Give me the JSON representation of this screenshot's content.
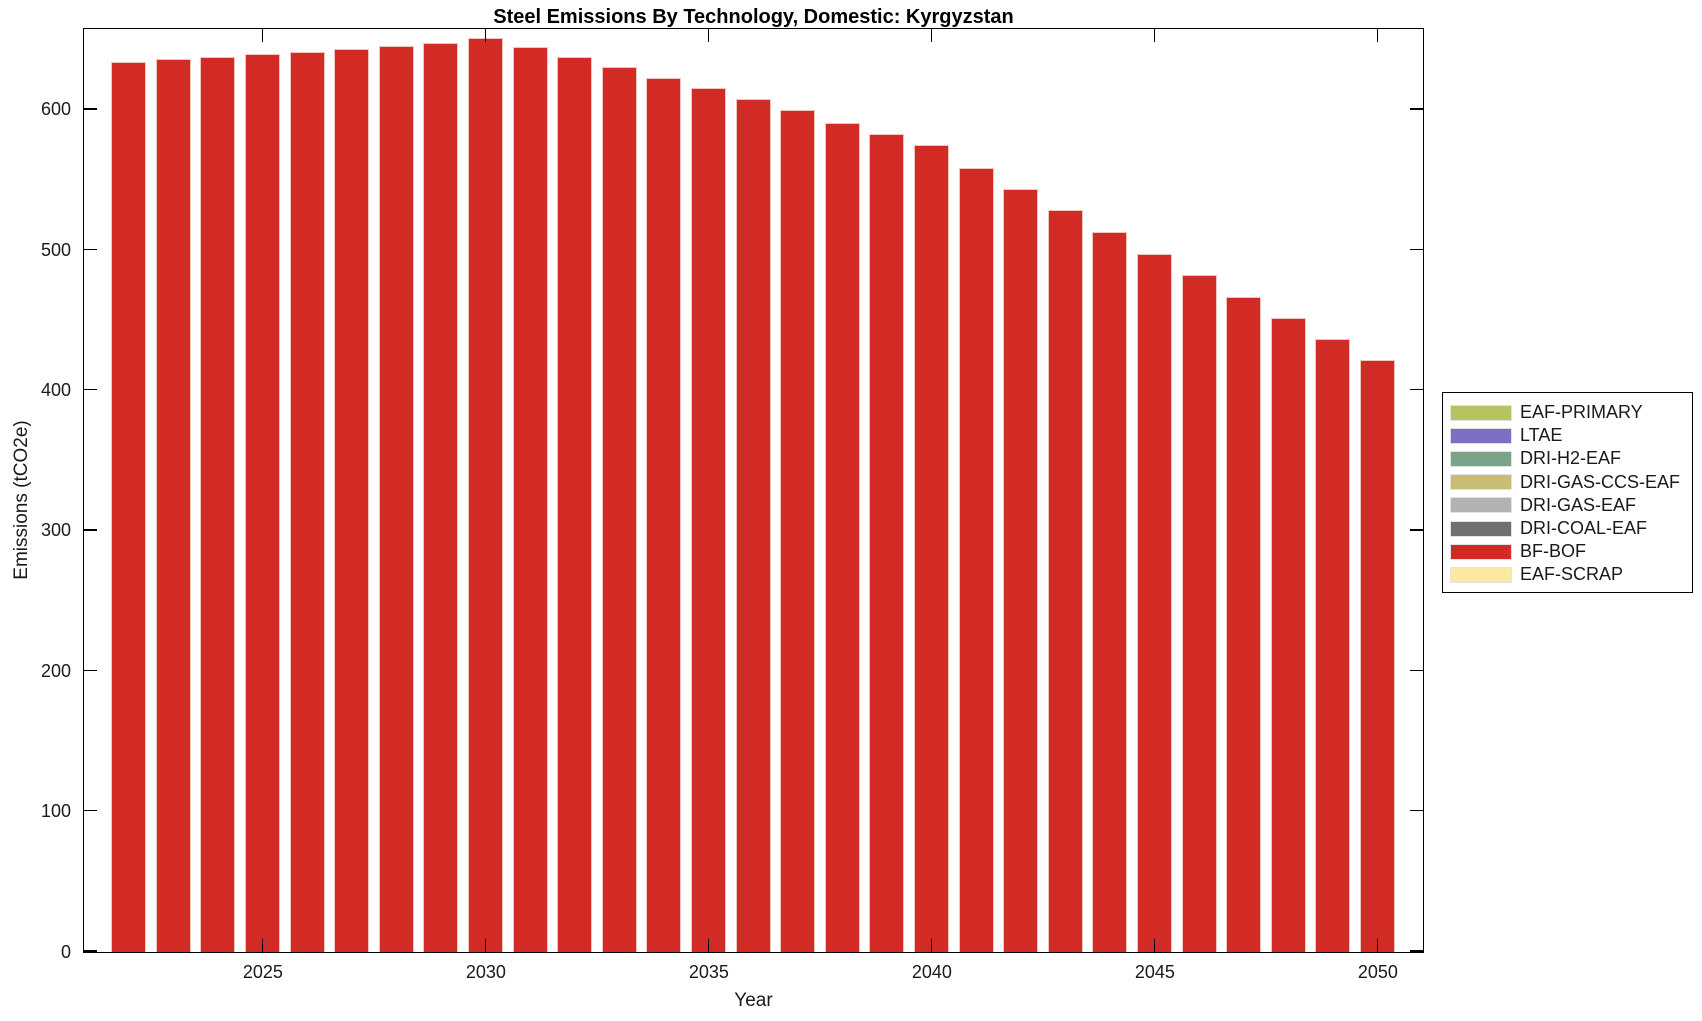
{
  "chart_data": {
    "type": "bar",
    "title": "Steel Emissions By Technology, Domestic: Kyrgyzstan",
    "xlabel": "Year",
    "ylabel": "Emissions (tCO2e)",
    "xlim": [
      2021,
      2051
    ],
    "ylim": [
      0,
      657
    ],
    "xticks": [
      2025,
      2030,
      2035,
      2040,
      2045,
      2050
    ],
    "yticks": [
      0,
      100,
      200,
      300,
      400,
      500,
      600
    ],
    "grid": false,
    "legend_position": "outside-right",
    "categories": [
      2022,
      2023,
      2024,
      2025,
      2026,
      2027,
      2028,
      2029,
      2030,
      2031,
      2032,
      2033,
      2034,
      2035,
      2036,
      2037,
      2038,
      2039,
      2040,
      2041,
      2042,
      2043,
      2044,
      2045,
      2046,
      2047,
      2048,
      2049,
      2050
    ],
    "series": [
      {
        "name": "BF-BOF",
        "color": "#d22b26",
        "values": [
          634,
          636,
          638,
          640,
          641.5,
          643.5,
          645.5,
          648,
          651,
          645,
          638,
          631,
          623,
          615.5,
          608,
          600,
          591,
          583,
          575,
          559,
          544,
          529,
          513,
          497.5,
          482.5,
          467,
          452,
          437,
          422
        ]
      }
    ],
    "legend": [
      {
        "label": "EAF-PRIMARY",
        "color": "#b6c360"
      },
      {
        "label": "LTAE",
        "color": "#7b6fc4"
      },
      {
        "label": "DRI-H2-EAF",
        "color": "#7aa287"
      },
      {
        "label": "DRI-GAS-CCS-EAF",
        "color": "#c8bd72"
      },
      {
        "label": "DRI-GAS-EAF",
        "color": "#b2b2b2"
      },
      {
        "label": "DRI-COAL-EAF",
        "color": "#707070"
      },
      {
        "label": "BF-BOF",
        "color": "#d22b26"
      },
      {
        "label": "EAF-SCRAP",
        "color": "#fce9a0"
      }
    ],
    "colors": {
      "bar": "#d22b26",
      "bar_edge": "#f0c6be",
      "axis": "#000000",
      "text": "#1a1a1a",
      "background": "#ffffff"
    }
  }
}
